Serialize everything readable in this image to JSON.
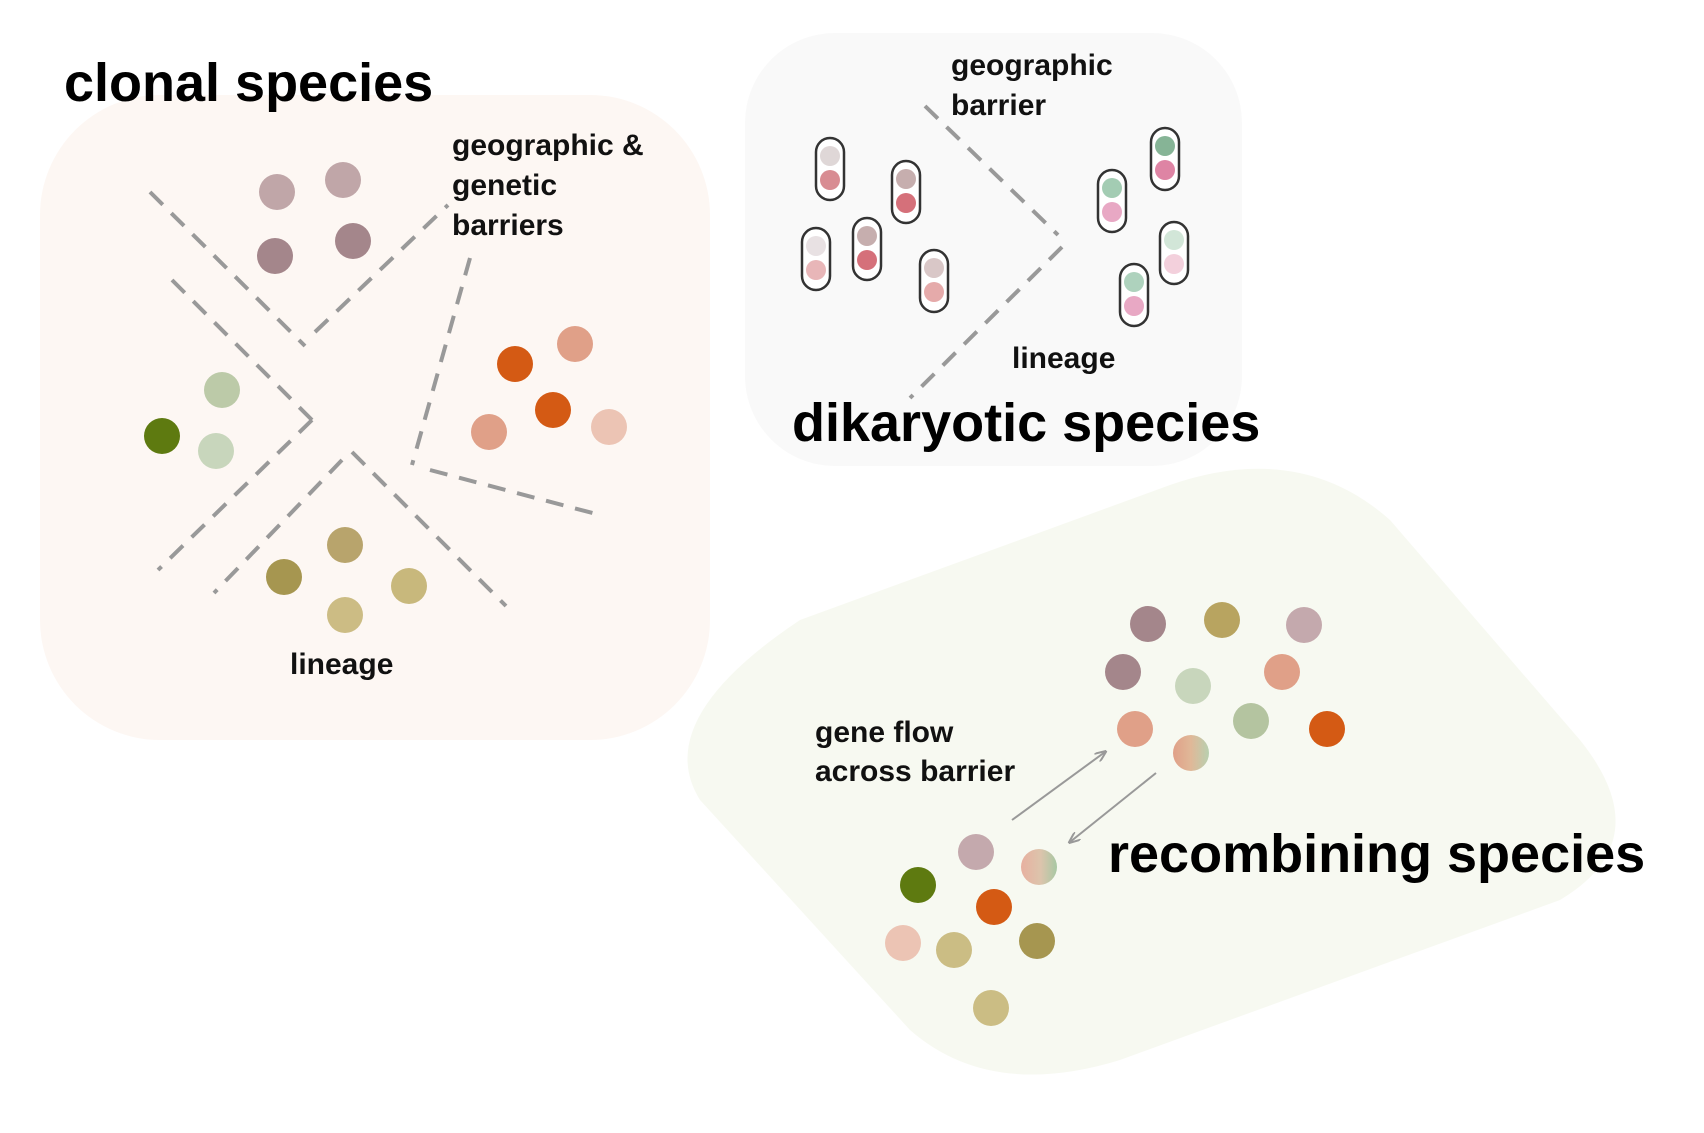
{
  "panels": {
    "clonal": {
      "title": "clonal species",
      "barrier_label_lines": [
        "geographic &",
        "genetic",
        "barriers"
      ],
      "lineage_label": "lineage",
      "background": "#fdf7f3",
      "groups": [
        {
          "name": "mauve-group",
          "colors": [
            "#c0a6a8",
            "#c0a6a8",
            "#a4868b",
            "#a4868b"
          ]
        },
        {
          "name": "green-group",
          "colors": [
            "#bccaa8",
            "#5e7a10",
            "#c8d6bc"
          ]
        },
        {
          "name": "orange-group",
          "colors": [
            "#d45a14",
            "#e0a088",
            "#d45a14",
            "#e0a088",
            "#ecc4b4"
          ]
        },
        {
          "name": "olive-group",
          "colors": [
            "#b8a46c",
            "#a69650",
            "#c8b87c",
            "#ccbc84"
          ]
        }
      ]
    },
    "dikaryotic": {
      "title": "dikaryotic species",
      "barrier_label_lines": [
        "geographic",
        "barrier"
      ],
      "lineage_label": "lineage",
      "background": "#f9f9f9",
      "cells": [
        {
          "top": "#dfd7d7",
          "bottom": "#d88c92"
        },
        {
          "top": "#c6aeae",
          "bottom": "#d5707a"
        },
        {
          "top": "#e8e1e3",
          "bottom": "#e8b6b8"
        },
        {
          "top": "#c6aeae",
          "bottom": "#d5707a"
        },
        {
          "top": "#d9c7c7",
          "bottom": "#e5aaaa"
        },
        {
          "top": "#86b496",
          "bottom": "#de84a4"
        },
        {
          "top": "#a3ccb3",
          "bottom": "#e8a8c4"
        },
        {
          "top": "#d2e6d8",
          "bottom": "#f3d0dc"
        },
        {
          "top": "#aed2bd",
          "bottom": "#e8a8c4"
        }
      ]
    },
    "recombining": {
      "title": "recombining species",
      "gene_flow_label_lines": [
        "gene flow",
        "across barrier"
      ],
      "background": "#f7f9f1",
      "colors": {
        "mauve_dark": "#a4868b",
        "mauve_light": "#c4a9ad",
        "olive": "#b8a460",
        "olive_dark": "#a69650",
        "olive_light": "#cbbd84",
        "sage": "#c8d6bc",
        "sage_mid": "#b4c4a0",
        "salmon": "#e0a088",
        "salmon_light": "#ecc4b4",
        "orange": "#d45a14",
        "green_dark": "#5e7a10",
        "arrow": "#999999"
      },
      "mixed_gradient": [
        "#e0a088",
        "#c8d6bc"
      ]
    }
  }
}
